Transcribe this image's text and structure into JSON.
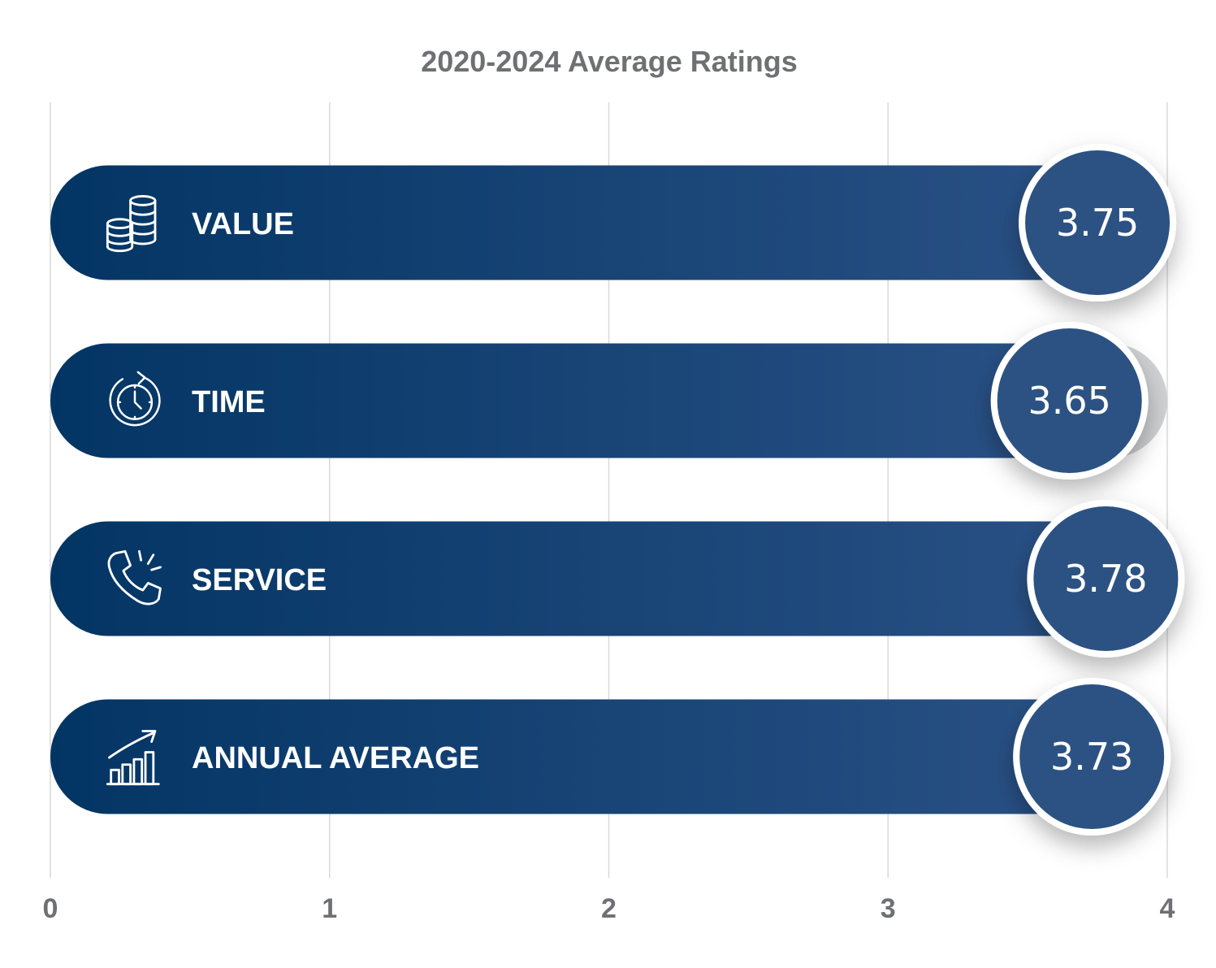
{
  "chart_data": {
    "type": "bar",
    "orientation": "horizontal",
    "title": "2020-2024 Average Ratings",
    "xlim": [
      0,
      4
    ],
    "x_ticks": [
      "0",
      "1",
      "2",
      "3",
      "4"
    ],
    "grid": true,
    "categories": [
      "VALUE",
      "TIME",
      "SERVICE",
      "ANNUAL AVERAGE"
    ],
    "values": [
      3.75,
      3.65,
      3.78,
      3.73
    ],
    "value_labels": [
      "3.75",
      "3.65",
      "3.78",
      "3.73"
    ],
    "icons": [
      "coins-icon",
      "stopwatch-icon",
      "phone-ringing-icon",
      "growth-chart-icon"
    ],
    "colors": {
      "bar_start": "#033564",
      "bar_end": "#2a5185",
      "bubble": "#2c5283",
      "track": "#d3d4d6",
      "title": "#6f7073",
      "ticks": "#6f7073"
    }
  }
}
